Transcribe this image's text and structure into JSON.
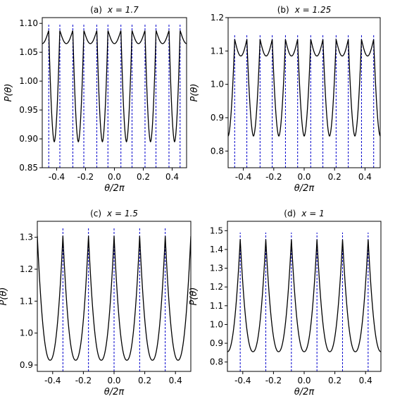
{
  "chart_data": [
    {
      "type": "line",
      "panel_label": "(a)",
      "title_param": "x = 1.7",
      "xlabel": "θ/2π",
      "ylabel": "P(θ)",
      "xlim": [
        -0.5,
        0.5
      ],
      "ylim": [
        0.85,
        1.11
      ],
      "xticks": [
        "-0.4",
        "-0.2",
        "0.0",
        "0.2",
        "0.4"
      ],
      "xtick_values": [
        -0.4,
        -0.2,
        0.0,
        0.2,
        0.4
      ],
      "yticks": [
        "0.85",
        "0.90",
        "0.95",
        "1.00",
        "1.05",
        "1.10"
      ],
      "ytick_values": [
        0.85,
        0.9,
        0.95,
        1.0,
        1.05,
        1.1
      ],
      "curve": {
        "color": "#000000",
        "shape": "symmetric dips between peak pairs",
        "period": 0.1667,
        "dip_centers": [
          -0.4167,
          -0.25,
          -0.0833,
          0.0833,
          0.25,
          0.4167
        ],
        "min": 0.895,
        "peak": 1.088,
        "shoulder": 1.065,
        "peak_offset": 0.0383
      },
      "vlines": {
        "color": "#0000cc",
        "style": "dashed",
        "ymin": 0.85,
        "ymax": 1.1,
        "x": [
          -0.455,
          -0.378,
          -0.288,
          -0.212,
          -0.122,
          -0.045,
          0.045,
          0.122,
          0.212,
          0.288,
          0.378,
          0.455
        ]
      }
    },
    {
      "type": "line",
      "panel_label": "(b)",
      "title_param": "x = 1.25",
      "xlabel": "θ/2π",
      "ylabel": "P(θ)",
      "xlim": [
        -0.5,
        0.5
      ],
      "ylim": [
        0.75,
        1.2
      ],
      "xticks": [
        "-0.4",
        "-0.2",
        "0.0",
        "0.2",
        "0.4"
      ],
      "xtick_values": [
        -0.4,
        -0.2,
        0.0,
        0.2,
        0.4
      ],
      "yticks": [
        "0.8",
        "0.9",
        "1.0",
        "1.1",
        "1.2"
      ],
      "ytick_values": [
        0.8,
        0.9,
        1.0,
        1.1,
        1.2
      ],
      "curve": {
        "color": "#000000",
        "shape": "symmetric dips between peak pairs",
        "period": 0.1667,
        "dip_centers": [
          -0.5,
          -0.3333,
          -0.1667,
          0.0,
          0.1667,
          0.3333,
          0.5
        ],
        "min": 0.845,
        "peak": 1.135,
        "shoulder": 1.085,
        "peak_offset": 0.0433
      },
      "vlines": {
        "color": "#0000cc",
        "style": "dashed",
        "ymin": 0.75,
        "ymax": 1.15,
        "x": [
          -0.457,
          -0.377,
          -0.29,
          -0.21,
          -0.123,
          -0.043,
          0.043,
          0.123,
          0.21,
          0.29,
          0.377,
          0.457
        ]
      }
    },
    {
      "type": "line",
      "panel_label": "(c)",
      "title_param": "x = 1.5",
      "xlabel": "θ/2π",
      "ylabel": "P(θ)",
      "xlim": [
        -0.5,
        0.5
      ],
      "ylim": [
        0.88,
        1.35
      ],
      "xticks": [
        "-0.4",
        "-0.2",
        "0.0",
        "0.2",
        "0.4"
      ],
      "xtick_values": [
        -0.4,
        -0.2,
        0.0,
        0.2,
        0.4
      ],
      "yticks": [
        "0.9",
        "1.0",
        "1.1",
        "1.2",
        "1.3"
      ],
      "ytick_values": [
        0.9,
        1.0,
        1.1,
        1.2,
        1.3
      ],
      "curve": {
        "color": "#000000",
        "shape": "smooth dips between single cusps",
        "period": 0.1667,
        "dip_centers": [
          -0.4167,
          -0.25,
          -0.0833,
          0.0833,
          0.25,
          0.4167
        ],
        "min": 0.915,
        "peak": 1.305
      },
      "vlines": {
        "color": "#0000cc",
        "style": "dashed",
        "ymin": 0.88,
        "ymax": 1.33,
        "x": [
          -0.5,
          -0.3333,
          -0.1667,
          0.0,
          0.1667,
          0.3333,
          0.5
        ]
      }
    },
    {
      "type": "line",
      "panel_label": "(d)",
      "title_param": "x = 1",
      "xlabel": "θ/2π",
      "ylabel": "P(θ)",
      "xlim": [
        -0.5,
        0.5
      ],
      "ylim": [
        0.75,
        1.55
      ],
      "xticks": [
        "-0.4",
        "-0.2",
        "0.0",
        "0.2",
        "0.4"
      ],
      "xtick_values": [
        -0.4,
        -0.2,
        0.0,
        0.2,
        0.4
      ],
      "yticks": [
        "0.8",
        "0.9",
        "1.0",
        "1.1",
        "1.2",
        "1.3",
        "1.4",
        "1.5"
      ],
      "ytick_values": [
        0.8,
        0.9,
        1.0,
        1.1,
        1.2,
        1.3,
        1.4,
        1.5
      ],
      "curve": {
        "color": "#000000",
        "shape": "smooth dips between single cusps",
        "period": 0.1667,
        "dip_centers": [
          -0.5,
          -0.3333,
          -0.1667,
          0.0,
          0.1667,
          0.3333,
          0.5
        ],
        "min": 0.855,
        "peak": 1.455
      },
      "vlines": {
        "color": "#0000cc",
        "style": "dashed",
        "ymin": 0.75,
        "ymax": 1.49,
        "x": [
          -0.4167,
          -0.25,
          -0.0833,
          0.0833,
          0.25,
          0.4167
        ]
      }
    }
  ]
}
